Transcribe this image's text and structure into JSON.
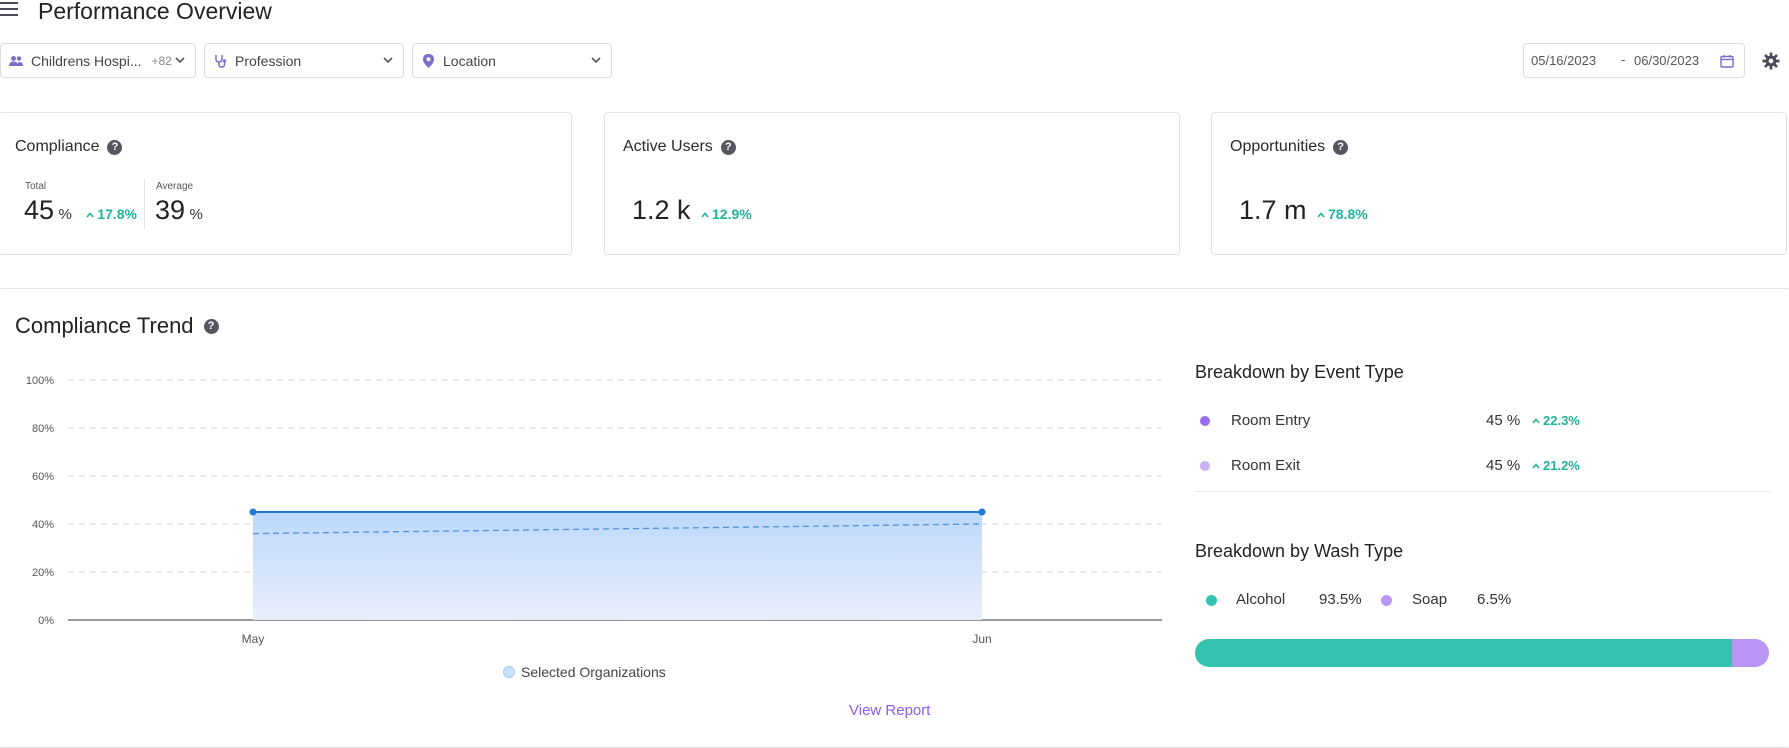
{
  "header": {
    "title": "Performance Overview"
  },
  "filters": {
    "organization": {
      "label": "Childrens Hospi...",
      "count": "+82"
    },
    "profession": {
      "label": "Profession"
    },
    "location": {
      "label": "Location"
    },
    "date_start": "05/16/2023",
    "date_sep": "-",
    "date_end": "06/30/2023"
  },
  "cards": {
    "compliance": {
      "title": "Compliance",
      "total_label": "Total",
      "total_value": "45",
      "total_unit": "%",
      "total_delta": "17.8%",
      "avg_label": "Average",
      "avg_value": "39",
      "avg_unit": "%"
    },
    "active_users": {
      "title": "Active Users",
      "value": "1.2 k",
      "delta": "12.9%"
    },
    "opportunities": {
      "title": "Opportunities",
      "value": "1.7 m",
      "delta": "78.8%"
    }
  },
  "trend": {
    "title": "Compliance Trend",
    "legend": "Selected Organizations",
    "view_report": "View Report"
  },
  "chart_data": {
    "type": "area",
    "categories": [
      "May",
      "Jun"
    ],
    "series": [
      {
        "name": "Selected Organizations",
        "values": [
          45,
          45
        ],
        "style": "solid"
      },
      {
        "values": [
          36,
          40
        ],
        "style": "dashed"
      }
    ],
    "yticks": [
      "0%",
      "20%",
      "40%",
      "60%",
      "80%",
      "100%"
    ],
    "ylim": [
      0,
      100
    ],
    "grid": true,
    "legend_position": "bottom"
  },
  "event_breakdown": {
    "title": "Breakdown by Event Type",
    "items": [
      {
        "label": "Room Entry",
        "value": "45 %",
        "delta": "22.3%",
        "color": "#9b6cf0"
      },
      {
        "label": "Room Exit",
        "value": "45 %",
        "delta": "21.2%",
        "color": "#c8b3f8"
      }
    ]
  },
  "wash_breakdown": {
    "title": "Breakdown by Wash Type",
    "items": [
      {
        "label": "Alcohol",
        "value": "93.5%",
        "color": "#33c3b0",
        "fraction": 0.935
      },
      {
        "label": "Soap",
        "value": "6.5%",
        "color": "#b995f5",
        "fraction": 0.065
      }
    ]
  },
  "colors": {
    "accent": "#8a5cf0",
    "positive": "#1fb39a",
    "line": "#1f7ad8"
  }
}
